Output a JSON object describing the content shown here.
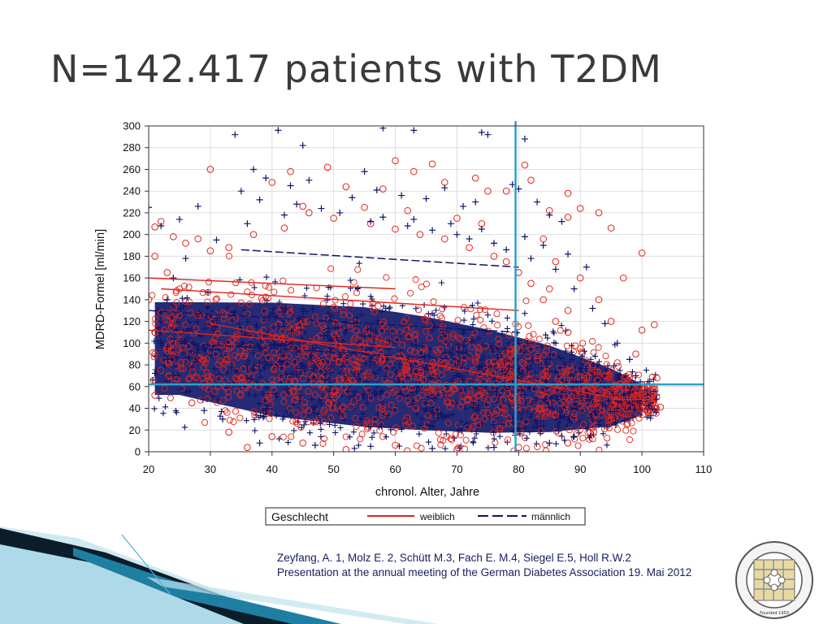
{
  "slide": {
    "title": "N=142.417 patients with T2DM",
    "citation_line1": "Zeyfang, A. 1, Molz E. 2, Schütt M.3, Fach E. M.4, Siegel E.5, Holl R.W.2",
    "citation_line2": "Presentation at the annual meeting of the German Diabetes Association 19. Mai 2012",
    "seal_text": "INTERNATIONAL ASSOCIATION OF GERONTOLOGY AND GERIATRICS",
    "seal_founded": "Founded 1950"
  },
  "colors": {
    "female": "#e2231a",
    "male": "#0d1466",
    "reference": "#2f9fc8",
    "grid": "#dddddd",
    "title": "#3a3a3a",
    "decor_dark": "#0b1d2a",
    "decor_teal": "#1e7fa3"
  },
  "chart_data": {
    "type": "scatter",
    "xlabel": "chronol. Alter, Jahre",
    "ylabel": "MDRD-Formel [ml/min]",
    "xlim": [
      20,
      110
    ],
    "ylim": [
      0,
      300
    ],
    "xticks": [
      20,
      30,
      40,
      50,
      60,
      70,
      80,
      90,
      100,
      110
    ],
    "yticks": [
      0,
      20,
      40,
      60,
      80,
      100,
      120,
      140,
      160,
      180,
      200,
      220,
      240,
      260,
      280,
      300
    ],
    "grid": true,
    "legend": {
      "placement": "bottom",
      "title": "Geschlecht",
      "entries": [
        {
          "name": "weiblich",
          "color": "#e2231a",
          "marker": "circle",
          "line": "solid"
        },
        {
          "name": "männlich",
          "color": "#0d1466",
          "marker": "plus",
          "line": "dashed"
        }
      ]
    },
    "reference_lines": [
      {
        "axis": "x",
        "value": 79.5
      },
      {
        "axis": "y",
        "value": 62
      }
    ],
    "density": [
      {
        "x": 25,
        "y_center": 95,
        "y_spread": 45
      },
      {
        "x": 40,
        "y_center": 85,
        "y_spread": 55
      },
      {
        "x": 55,
        "y_center": 78,
        "y_spread": 58
      },
      {
        "x": 65,
        "y_center": 72,
        "y_spread": 55
      },
      {
        "x": 75,
        "y_center": 65,
        "y_spread": 50
      },
      {
        "x": 85,
        "y_center": 58,
        "y_spread": 42
      },
      {
        "x": 95,
        "y_center": 50,
        "y_spread": 28
      },
      {
        "x": 100,
        "y_center": 48,
        "y_spread": 15
      }
    ],
    "series": [
      {
        "name": "weiblich",
        "marker": "circle",
        "points": [
          [
            30,
            260
          ],
          [
            40,
            248
          ],
          [
            43,
            258
          ],
          [
            49,
            262
          ],
          [
            52,
            244
          ],
          [
            58,
            242
          ],
          [
            60,
            268
          ],
          [
            63,
            258
          ],
          [
            66,
            265
          ],
          [
            68,
            248
          ],
          [
            73,
            252
          ],
          [
            75,
            240
          ],
          [
            78,
            240
          ],
          [
            81,
            264
          ],
          [
            82,
            250
          ],
          [
            88,
            238
          ],
          [
            85,
            222
          ],
          [
            88,
            216
          ],
          [
            90,
            224
          ],
          [
            93,
            220
          ],
          [
            95,
            206
          ],
          [
            100,
            183
          ],
          [
            97,
            160
          ],
          [
            102,
            117
          ],
          [
            100,
            112
          ],
          [
            99,
            90
          ],
          [
            103,
            41
          ],
          [
            101,
            48
          ],
          [
            102,
            60
          ],
          [
            21,
            207
          ],
          [
            22,
            212
          ],
          [
            24,
            198
          ],
          [
            26,
            192
          ],
          [
            28,
            196
          ],
          [
            21,
            180
          ],
          [
            23,
            165
          ],
          [
            25,
            150
          ],
          [
            20,
            140
          ],
          [
            22,
            128
          ],
          [
            21,
            110
          ],
          [
            21,
            90
          ],
          [
            22,
            75
          ],
          [
            21,
            52
          ],
          [
            27,
            45
          ],
          [
            33,
            18
          ],
          [
            36,
            4
          ],
          [
            40,
            14
          ],
          [
            45,
            8
          ],
          [
            52,
            2
          ],
          [
            60,
            6
          ],
          [
            70,
            2
          ],
          [
            80,
            4
          ],
          [
            88,
            8
          ],
          [
            92,
            22
          ],
          [
            95,
            30
          ],
          [
            97,
            35
          ],
          [
            98,
            40
          ],
          [
            96,
            60
          ],
          [
            94,
            70
          ],
          [
            92,
            80
          ],
          [
            90,
            95
          ],
          [
            88,
            110
          ],
          [
            86,
            120
          ],
          [
            84,
            140
          ],
          [
            82,
            155
          ],
          [
            80,
            165
          ],
          [
            78,
            175
          ],
          [
            76,
            180
          ],
          [
            72,
            188
          ],
          [
            68,
            196
          ],
          [
            64,
            200
          ],
          [
            60,
            205
          ],
          [
            56,
            210
          ],
          [
            50,
            215
          ],
          [
            46,
            220
          ],
          [
            42,
            206
          ],
          [
            37,
            200
          ],
          [
            33,
            188
          ],
          [
            30,
            185
          ],
          [
            45,
            226
          ],
          [
            55,
            225
          ],
          [
            62,
            222
          ],
          [
            70,
            215
          ],
          [
            74,
            210
          ],
          [
            84,
            196
          ],
          [
            86,
            175
          ],
          [
            90,
            160
          ],
          [
            93,
            140
          ],
          [
            95,
            120
          ],
          [
            88,
            130
          ],
          [
            85,
            150
          ]
        ]
      },
      {
        "name": "männlich",
        "marker": "plus",
        "points": [
          [
            41,
            296
          ],
          [
            58,
            298
          ],
          [
            74,
            294
          ],
          [
            75,
            292
          ],
          [
            81,
            288
          ],
          [
            37,
            260
          ],
          [
            39,
            252
          ],
          [
            43,
            245
          ],
          [
            46,
            250
          ],
          [
            53,
            234
          ],
          [
            55,
            258
          ],
          [
            57,
            241
          ],
          [
            61,
            236
          ],
          [
            65,
            233
          ],
          [
            68,
            243
          ],
          [
            71,
            226
          ],
          [
            73,
            230
          ],
          [
            79,
            246
          ],
          [
            80,
            242
          ],
          [
            83,
            230
          ],
          [
            85,
            218
          ],
          [
            87,
            212
          ],
          [
            20,
            225
          ],
          [
            22,
            208
          ],
          [
            25,
            214
          ],
          [
            28,
            226
          ],
          [
            35,
            240
          ],
          [
            38,
            232
          ],
          [
            44,
            228
          ],
          [
            48,
            224
          ],
          [
            51,
            220
          ],
          [
            56,
            212
          ],
          [
            62,
            208
          ],
          [
            66,
            204
          ],
          [
            70,
            200
          ],
          [
            72,
            196
          ],
          [
            76,
            192
          ],
          [
            78,
            186
          ],
          [
            82,
            178
          ],
          [
            86,
            168
          ],
          [
            89,
            150
          ],
          [
            92,
            132
          ],
          [
            94,
            118
          ],
          [
            96,
            100
          ],
          [
            98,
            85
          ],
          [
            99,
            70
          ],
          [
            98,
            55
          ],
          [
            96,
            40
          ],
          [
            93,
            25
          ],
          [
            89,
            14
          ],
          [
            85,
            8
          ],
          [
            76,
            4
          ],
          [
            66,
            3
          ],
          [
            56,
            5
          ],
          [
            47,
            6
          ],
          [
            38,
            8
          ],
          [
            32,
            30
          ],
          [
            29,
            38
          ],
          [
            26,
            55
          ],
          [
            24,
            70
          ],
          [
            23,
            85
          ],
          [
            22,
            100
          ],
          [
            22,
            120
          ],
          [
            23,
            140
          ],
          [
            24,
            160
          ],
          [
            26,
            178
          ],
          [
            31,
            195
          ],
          [
            36,
            210
          ],
          [
            42,
            218
          ],
          [
            58,
            216
          ],
          [
            63,
            214
          ],
          [
            69,
            210
          ],
          [
            74,
            205
          ],
          [
            81,
            198
          ],
          [
            84,
            190
          ],
          [
            88,
            182
          ],
          [
            91,
            170
          ],
          [
            34,
            292
          ],
          [
            45,
            282
          ],
          [
            63,
            296
          ]
        ]
      }
    ]
  }
}
